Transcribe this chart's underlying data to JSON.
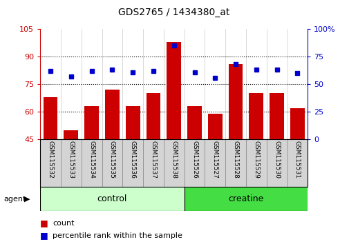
{
  "title": "GDS2765 / 1434380_at",
  "samples": [
    "GSM115532",
    "GSM115533",
    "GSM115534",
    "GSM115535",
    "GSM115536",
    "GSM115537",
    "GSM115538",
    "GSM115526",
    "GSM115527",
    "GSM115528",
    "GSM115529",
    "GSM115530",
    "GSM115531"
  ],
  "counts": [
    68,
    50,
    63,
    72,
    63,
    70,
    98,
    63,
    59,
    86,
    70,
    70,
    62
  ],
  "percentiles": [
    62,
    57,
    62,
    63,
    61,
    62,
    85,
    61,
    56,
    68,
    63,
    63,
    60
  ],
  "ymin": 45,
  "ymax": 105,
  "yticks_left": [
    45,
    60,
    75,
    90,
    105
  ],
  "yticks_right": [
    0,
    25,
    50,
    75,
    100
  ],
  "bar_color": "#cc0000",
  "dot_color": "#0000cc",
  "control_color": "#ccffcc",
  "creatine_color": "#44dd44",
  "left_axis_color": "#cc0000",
  "right_axis_color": "#0000cc",
  "grid_dotted_at": [
    60,
    75,
    90
  ],
  "n_control": 7,
  "n_creatine": 6,
  "legend_items": [
    "count",
    "percentile rank within the sample"
  ],
  "agent_label": "agent"
}
